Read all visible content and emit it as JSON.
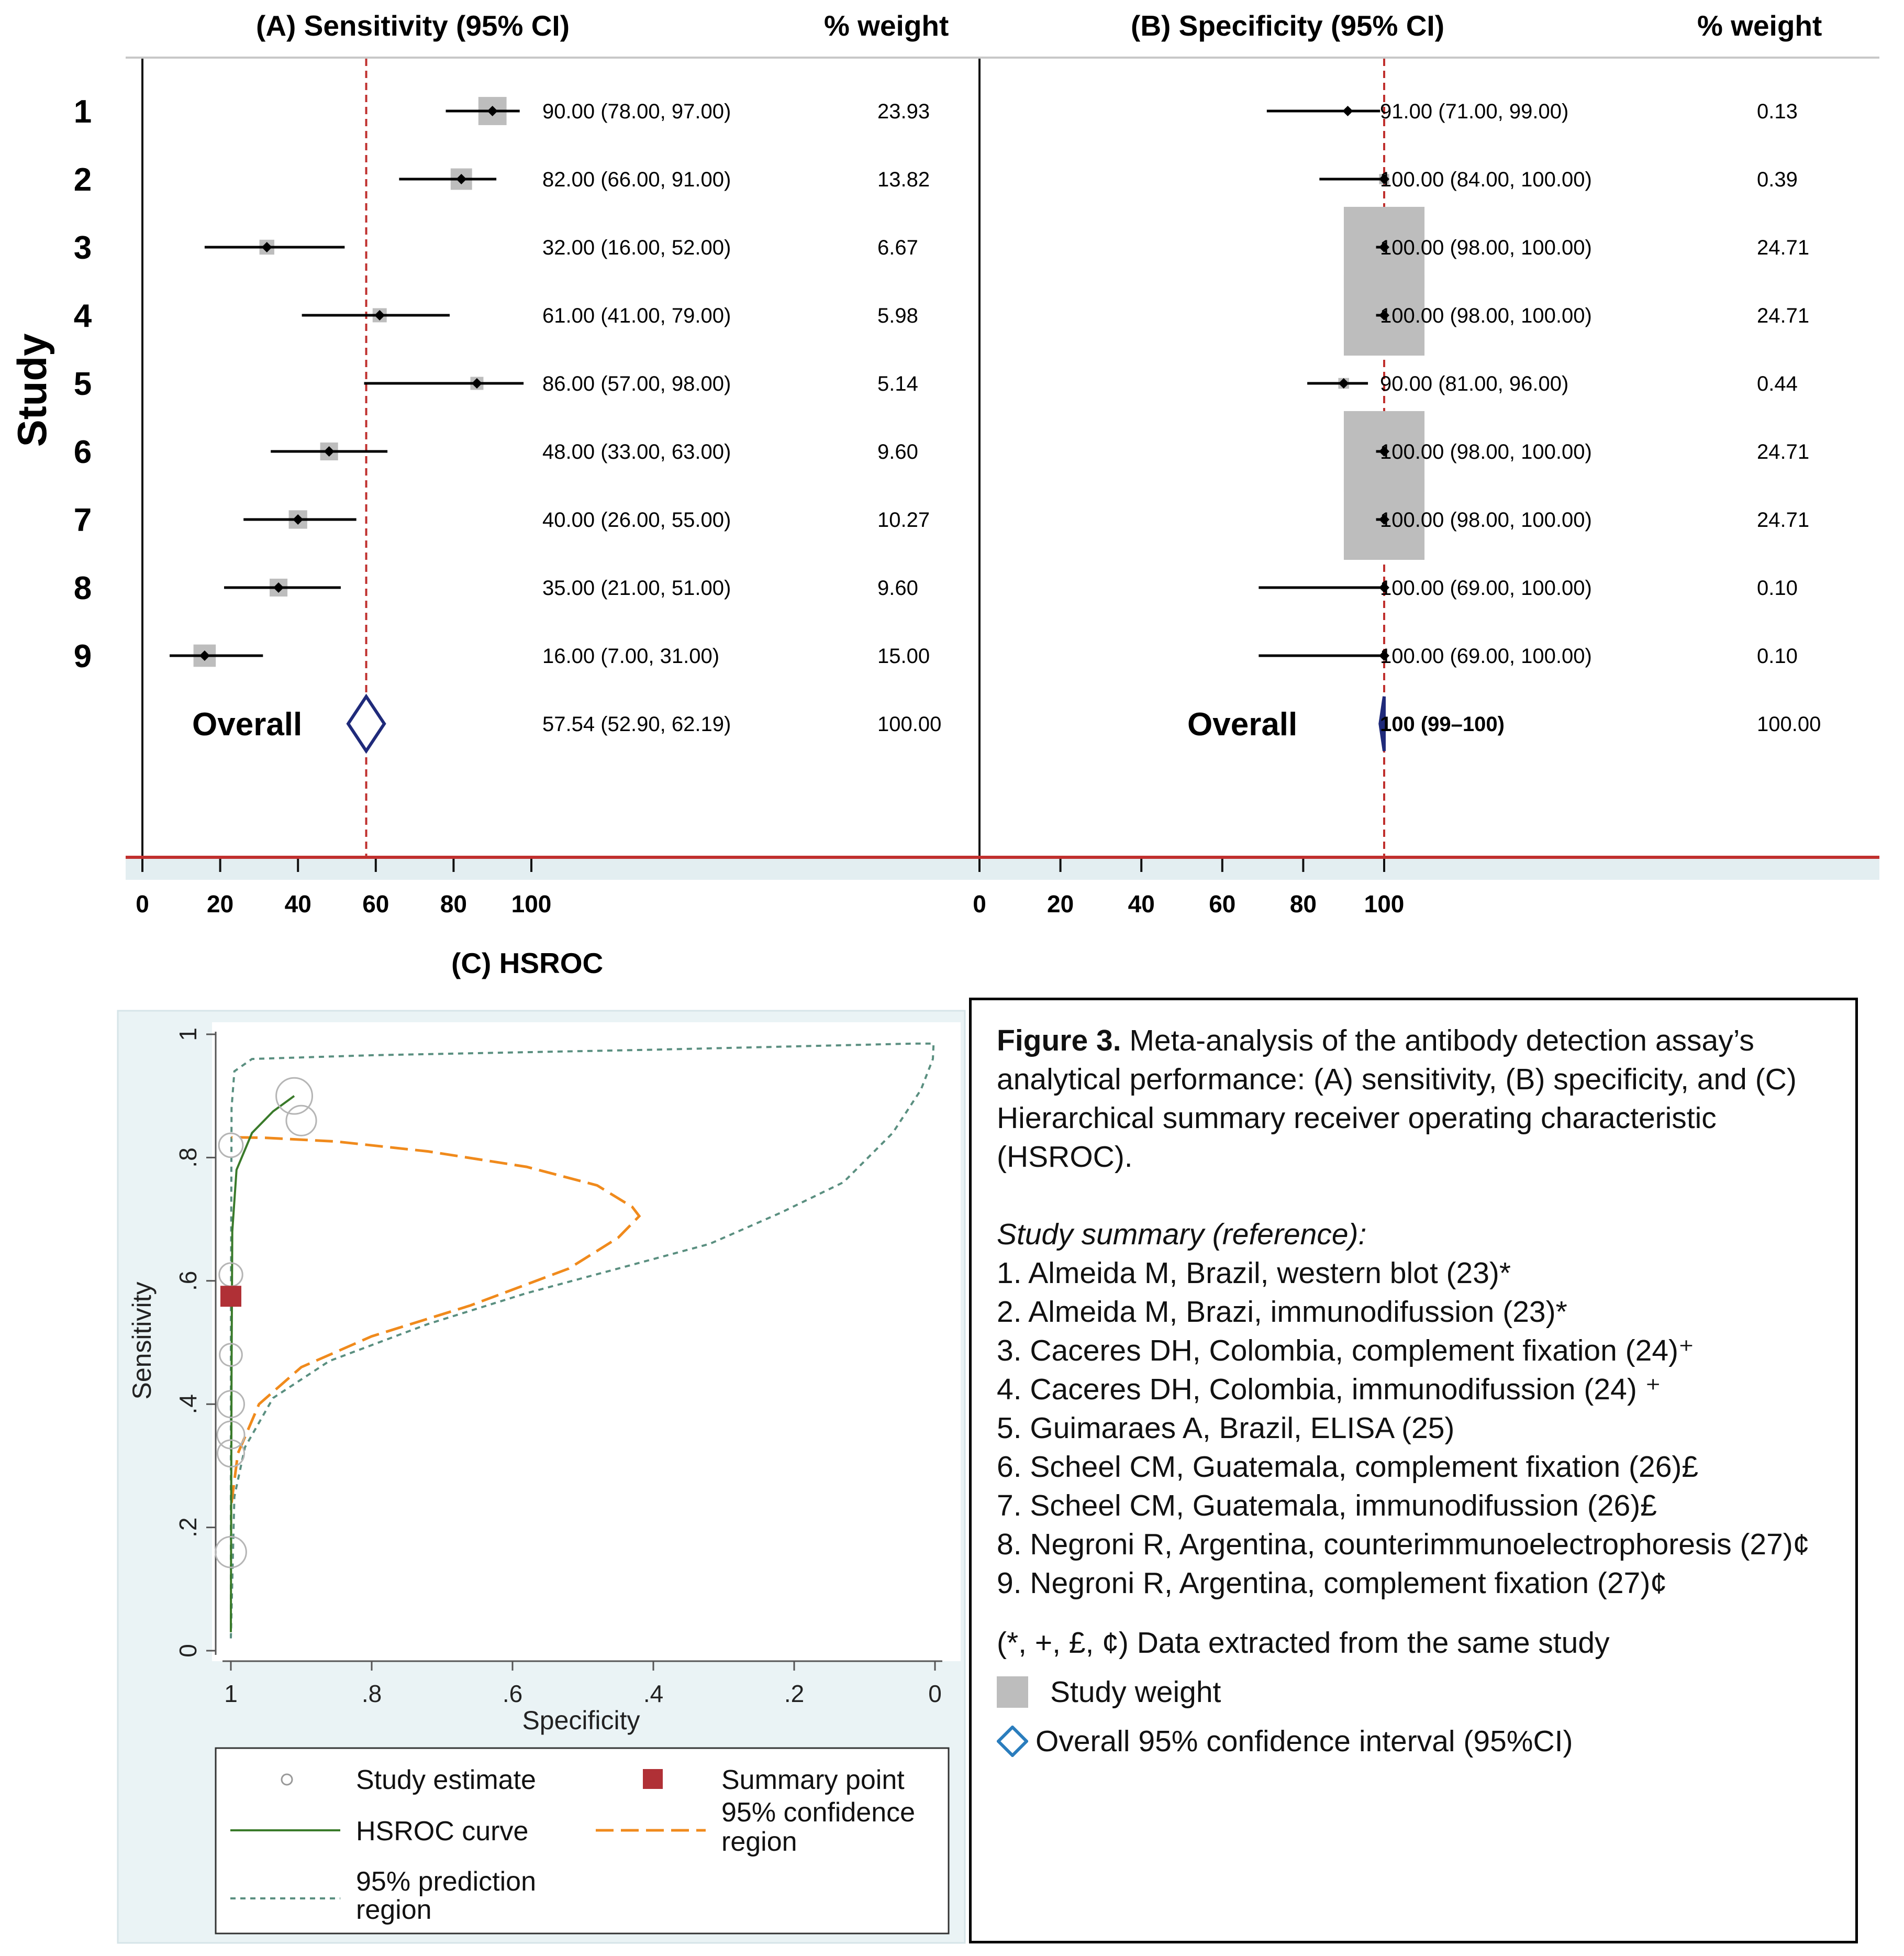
{
  "panel_a": {
    "title": "(A) Sensitivity (95% CI)",
    "weight_header": "% weight",
    "studies": [
      {
        "id": "1",
        "label": "90.00 (78.00, 97.00)",
        "weight": "23.93"
      },
      {
        "id": "2",
        "label": "82.00 (66.00, 91.00)",
        "weight": "13.82"
      },
      {
        "id": "3",
        "label": "32.00 (16.00, 52.00)",
        "weight": "6.67"
      },
      {
        "id": "4",
        "label": "61.00 (41.00, 79.00)",
        "weight": "5.98"
      },
      {
        "id": "5",
        "label": "86.00 (57.00, 98.00)",
        "weight": "5.14"
      },
      {
        "id": "6",
        "label": "48.00 (33.00, 63.00)",
        "weight": "9.60"
      },
      {
        "id": "7",
        "label": "40.00 (26.00, 55.00)",
        "weight": "10.27"
      },
      {
        "id": "8",
        "label": "35.00 (21.00, 51.00)",
        "weight": "9.60"
      },
      {
        "id": "9",
        "label": "16.00 (7.00, 31.00)",
        "weight": "15.00"
      }
    ],
    "overall_label": "Overall",
    "overall_text": "57.54 (52.90, 62.19)",
    "overall_weight": "100.00",
    "ticks": [
      "0",
      "20",
      "40",
      "60",
      "80",
      "100"
    ]
  },
  "panel_b": {
    "title": "(B) Specificity (95% CI)",
    "weight_header": "% weight",
    "studies": [
      {
        "id": "1",
        "label": "91.00 (71.00, 99.00)",
        "weight": "0.13"
      },
      {
        "id": "2",
        "label": "100.00 (84.00, 100.00)",
        "weight": "0.39"
      },
      {
        "id": "3",
        "label": "100.00 (98.00, 100.00)",
        "weight": "24.71"
      },
      {
        "id": "4",
        "label": "100.00 (98.00, 100.00)",
        "weight": "24.71"
      },
      {
        "id": "5",
        "label": "90.00 (81.00, 96.00)",
        "weight": "0.44"
      },
      {
        "id": "6",
        "label": "100.00 (98.00, 100.00)",
        "weight": "24.71"
      },
      {
        "id": "7",
        "label": "100.00 (98.00, 100.00)",
        "weight": "24.71"
      },
      {
        "id": "8",
        "label": "100.00 (69.00, 100.00)",
        "weight": "0.10"
      },
      {
        "id": "9",
        "label": "100.00 (69.00, 100.00)",
        "weight": "0.10"
      }
    ],
    "overall_label": "Overall",
    "overall_text": "100 (99–100)",
    "overall_weight": "100.00",
    "ticks": [
      "0",
      "20",
      "40",
      "60",
      "80",
      "100"
    ]
  },
  "study_axis_label": "Study",
  "panel_c": {
    "title": "(C) HSROC",
    "xlabel": "Specificity",
    "ylabel": "Sensitivity",
    "xticks": [
      "1",
      ".8",
      ".6",
      ".4",
      ".2",
      "0"
    ],
    "yticks": [
      "0",
      ".2",
      ".4",
      ".6",
      ".8",
      "1"
    ],
    "legend": {
      "study_estimate": "Study estimate",
      "summary_point": "Summary point",
      "hsroc_curve": "HSROC curve",
      "confidence_line1": "95% confidence",
      "confidence_line2": "region",
      "prediction_line1": "95% prediction",
      "prediction_line2": "region"
    }
  },
  "caption": {
    "figure_label": "Figure 3.",
    "text": " Meta-analysis of the antibody detection assay’s analytical performance: (A) sensitivity, (B) specificity, and (C) Hierarchical summary receiver operating characteristic (HSROC).",
    "ref_heading": "Study summary (reference):",
    "refs": [
      "1. Almeida M, Brazil, western blot (23)*",
      "2. Almeida M, Brazi, immunodifussion (23)*",
      "3. Caceres DH, Colombia, complement fixation (24)⁺",
      "4. Caceres DH, Colombia, immunodifussion (24) ⁺",
      "5. Guimaraes A, Brazil, ELISA (25)",
      "6. Scheel CM, Guatemala, complement fixation (26)£",
      "7. Scheel CM, Guatemala, immunodifussion (26)£",
      "8. Negroni R, Argentina, counterimmunoelectrophoresis (27)¢",
      "9. Negroni R, Argentina, complement fixation (27)¢"
    ],
    "footnote": "(*, +, £, ¢) Data extracted from the same study",
    "legend_weight": "Study weight",
    "legend_ci": "Overall 95% confidence interval (95%CI)"
  },
  "colors": {
    "box": "#bdbdbd",
    "ref_line": "#c0302e",
    "diamond": "#1f2a7a",
    "hsroc": "#3a7a2a",
    "confidence": "#f08a1c",
    "prediction": "#5a8f80",
    "summary": "#b03036",
    "legend_diamond": "#2a7dbd"
  },
  "chart_data": [
    {
      "type": "forest",
      "title": "(A) Sensitivity (95% CI)",
      "xlim": [
        0,
        100
      ],
      "reference_line": 57.54,
      "studies": [
        {
          "id": 1,
          "est": 90,
          "lo": 78,
          "hi": 97,
          "weight": 23.93
        },
        {
          "id": 2,
          "est": 82,
          "lo": 66,
          "hi": 91,
          "weight": 13.82
        },
        {
          "id": 3,
          "est": 32,
          "lo": 16,
          "hi": 52,
          "weight": 6.67
        },
        {
          "id": 4,
          "est": 61,
          "lo": 41,
          "hi": 79,
          "weight": 5.98
        },
        {
          "id": 5,
          "est": 86,
          "lo": 57,
          "hi": 98,
          "weight": 5.14
        },
        {
          "id": 6,
          "est": 48,
          "lo": 33,
          "hi": 63,
          "weight": 9.6
        },
        {
          "id": 7,
          "est": 40,
          "lo": 26,
          "hi": 55,
          "weight": 10.27
        },
        {
          "id": 8,
          "est": 35,
          "lo": 21,
          "hi": 51,
          "weight": 9.6
        },
        {
          "id": 9,
          "est": 16,
          "lo": 7,
          "hi": 31,
          "weight": 15.0
        }
      ],
      "overall": {
        "est": 57.54,
        "lo": 52.9,
        "hi": 62.19,
        "weight": 100
      }
    },
    {
      "type": "forest",
      "title": "(B) Specificity (95% CI)",
      "xlim": [
        0,
        100
      ],
      "reference_line": 100,
      "studies": [
        {
          "id": 1,
          "est": 91,
          "lo": 71,
          "hi": 99,
          "weight": 0.13
        },
        {
          "id": 2,
          "est": 100,
          "lo": 84,
          "hi": 100,
          "weight": 0.39
        },
        {
          "id": 3,
          "est": 100,
          "lo": 98,
          "hi": 100,
          "weight": 24.71
        },
        {
          "id": 4,
          "est": 100,
          "lo": 98,
          "hi": 100,
          "weight": 24.71
        },
        {
          "id": 5,
          "est": 90,
          "lo": 81,
          "hi": 96,
          "weight": 0.44
        },
        {
          "id": 6,
          "est": 100,
          "lo": 98,
          "hi": 100,
          "weight": 24.71
        },
        {
          "id": 7,
          "est": 100,
          "lo": 98,
          "hi": 100,
          "weight": 24.71
        },
        {
          "id": 8,
          "est": 100,
          "lo": 69,
          "hi": 100,
          "weight": 0.1
        },
        {
          "id": 9,
          "est": 100,
          "lo": 69,
          "hi": 100,
          "weight": 0.1
        }
      ],
      "overall": {
        "est": 100,
        "lo": 99,
        "hi": 100,
        "weight": 100
      }
    },
    {
      "type": "hsroc",
      "title": "(C) HSROC",
      "xlabel": "Specificity",
      "ylabel": "Sensitivity",
      "xlim": [
        1,
        0
      ],
      "ylim": [
        0,
        1
      ],
      "study_points": [
        {
          "spec": 0.91,
          "sens": 0.9
        },
        {
          "spec": 0.9,
          "sens": 0.86
        },
        {
          "spec": 1.0,
          "sens": 0.82
        },
        {
          "spec": 1.0,
          "sens": 0.61
        },
        {
          "spec": 1.0,
          "sens": 0.48
        },
        {
          "spec": 1.0,
          "sens": 0.4
        },
        {
          "spec": 1.0,
          "sens": 0.35
        },
        {
          "spec": 1.0,
          "sens": 0.32
        },
        {
          "spec": 1.0,
          "sens": 0.16
        }
      ],
      "summary_point": {
        "spec": 1.0,
        "sens": 0.575
      },
      "hsroc_curve": [
        [
          1.0,
          0.03
        ],
        [
          0.999,
          0.45
        ],
        [
          0.998,
          0.68
        ],
        [
          0.992,
          0.78
        ],
        [
          0.97,
          0.84
        ],
        [
          0.94,
          0.875
        ],
        [
          0.91,
          0.9
        ]
      ],
      "confidence_region": [
        [
          0.999,
          0.24
        ],
        [
          0.99,
          0.32
        ],
        [
          0.96,
          0.4
        ],
        [
          0.9,
          0.46
        ],
        [
          0.8,
          0.51
        ],
        [
          0.66,
          0.56
        ],
        [
          0.52,
          0.62
        ],
        [
          0.45,
          0.67
        ],
        [
          0.42,
          0.705
        ],
        [
          0.43,
          0.72
        ],
        [
          0.48,
          0.755
        ],
        [
          0.58,
          0.785
        ],
        [
          0.72,
          0.81
        ],
        [
          0.85,
          0.826
        ],
        [
          0.95,
          0.832
        ],
        [
          0.999,
          0.833
        ]
      ],
      "prediction_region": [
        [
          1.0,
          0.02
        ],
        [
          0.995,
          0.25
        ],
        [
          0.98,
          0.33
        ],
        [
          0.94,
          0.41
        ],
        [
          0.86,
          0.47
        ],
        [
          0.72,
          0.53
        ],
        [
          0.58,
          0.58
        ],
        [
          0.45,
          0.62
        ],
        [
          0.32,
          0.66
        ],
        [
          0.22,
          0.71
        ],
        [
          0.13,
          0.76
        ],
        [
          0.06,
          0.84
        ],
        [
          0.02,
          0.91
        ],
        [
          0.003,
          0.96
        ],
        [
          0.002,
          0.985
        ],
        [
          0.03,
          0.985
        ],
        [
          0.4,
          0.975
        ],
        [
          0.8,
          0.966
        ],
        [
          0.97,
          0.96
        ],
        [
          0.995,
          0.94
        ],
        [
          0.999,
          0.88
        ],
        [
          1.0,
          0.5
        ],
        [
          1.0,
          0.02
        ]
      ]
    }
  ]
}
